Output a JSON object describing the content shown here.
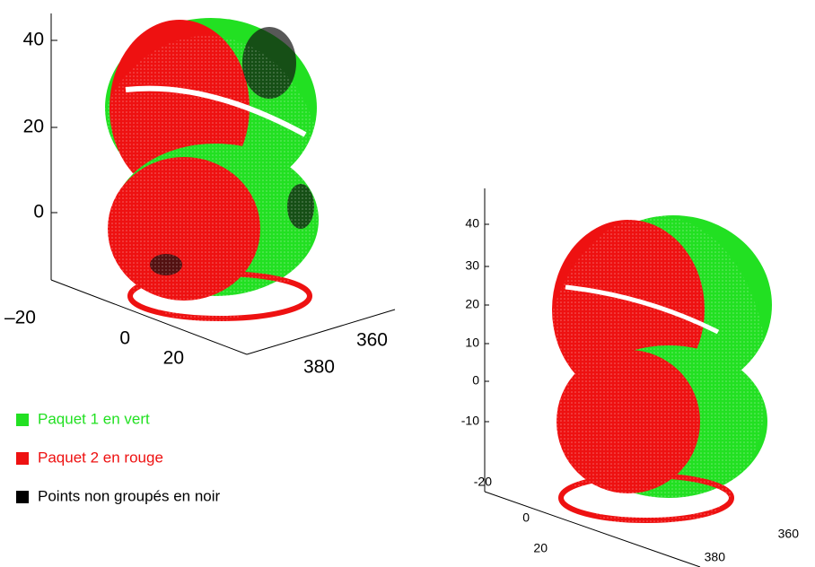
{
  "plots": [
    {
      "zticks": [
        "40",
        "20",
        "0"
      ],
      "xticks": [
        "–20",
        "0",
        "20"
      ],
      "yticks": [
        "360",
        "380"
      ]
    },
    {
      "zticks": [
        "40",
        "30",
        "20",
        "10",
        "0",
        "-10"
      ],
      "xticks": [
        "-20",
        "0",
        "20"
      ],
      "yticks": [
        "360",
        "380"
      ]
    }
  ],
  "legend": [
    {
      "label": " Paquet 1 en vert",
      "color": "#22e022"
    },
    {
      "label": "Paquet 2 en rouge",
      "color": "#ee1111"
    },
    {
      "label": "Points non groupés en noir",
      "color": "#000000"
    }
  ]
}
